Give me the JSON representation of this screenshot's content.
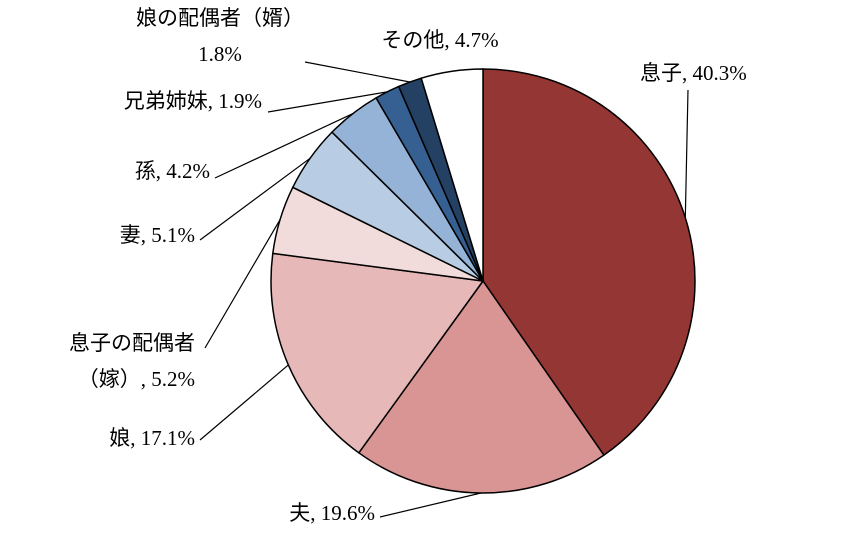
{
  "chart_data": {
    "type": "pie",
    "categories": [
      "息子",
      "夫",
      "娘",
      "息子の配偶者（嫁）",
      "妻",
      "孫",
      "兄弟姉妹",
      "娘の配偶者（婿）",
      "その他"
    ],
    "values": [
      40.3,
      19.6,
      17.1,
      5.2,
      5.1,
      4.2,
      1.9,
      1.8,
      4.7
    ],
    "value_labels": [
      [
        "息子, 40.3%"
      ],
      [
        "夫, 19.6%"
      ],
      [
        "娘, 17.1%"
      ],
      [
        "息子の配偶者",
        "（嫁）, 5.2%"
      ],
      [
        "妻, 5.1%"
      ],
      [
        "孫, 4.2%"
      ],
      [
        "兄弟姉妹, 1.9%"
      ],
      [
        "娘の配偶者（婿）",
        "1.8%"
      ],
      [
        "その他, 4.7%"
      ]
    ],
    "colors": [
      "#943634",
      "#d99594",
      "#e6b8b7",
      "#f2dcdb",
      "#b8cce4",
      "#95b3d7",
      "#366092",
      "#244062",
      "#ffffff"
    ]
  }
}
